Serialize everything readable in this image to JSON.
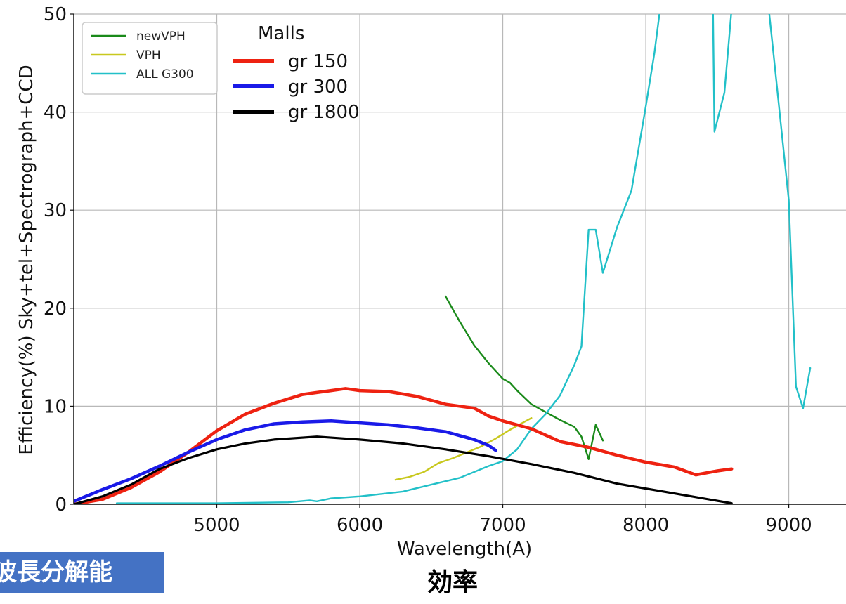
{
  "banner": {
    "label": "波長分解能"
  },
  "caption": {
    "label": "効率"
  },
  "colors": {
    "newVPH": "#1a8a1a",
    "VPH": "#c8c81e",
    "ALL G300": "#22c0c8",
    "gr 150": "#ee2211",
    "gr 300": "#1a1ae8",
    "gr 1800": "#000000"
  },
  "chart_data": {
    "type": "line",
    "xlabel": "Wavelength(A)",
    "ylabel": "Efficiency(%) Sky+tel+Spectrograph+CCD",
    "xlim": [
      4000,
      9400
    ],
    "ylim": [
      0,
      50
    ],
    "xticks": [
      5000,
      6000,
      7000,
      8000,
      9000
    ],
    "yticks": [
      0,
      10,
      20,
      30,
      40,
      50
    ],
    "grid": true,
    "legend_top_left": {
      "placement": "top-left",
      "entries": [
        "newVPH",
        "VPH",
        "ALL G300"
      ]
    },
    "legend_malls": {
      "title": "Malls",
      "placement": "top-left",
      "entries": [
        "gr 150",
        "gr 300",
        "gr 1800"
      ]
    },
    "series": [
      {
        "name": "newVPH",
        "width": "thin",
        "points": [
          [
            6600,
            21.2
          ],
          [
            6700,
            18.6
          ],
          [
            6800,
            16.2
          ],
          [
            6900,
            14.4
          ],
          [
            7000,
            12.8
          ],
          [
            7050,
            12.4
          ],
          [
            7100,
            11.6
          ],
          [
            7200,
            10.2
          ],
          [
            7300,
            9.4
          ],
          [
            7400,
            8.6
          ],
          [
            7500,
            7.9
          ],
          [
            7550,
            6.9
          ],
          [
            7600,
            4.6
          ],
          [
            7650,
            8.1
          ],
          [
            7700,
            6.5
          ]
        ]
      },
      {
        "name": "VPH",
        "width": "thin",
        "points": [
          [
            6250,
            2.5
          ],
          [
            6350,
            2.8
          ],
          [
            6450,
            3.3
          ],
          [
            6550,
            4.2
          ],
          [
            6650,
            4.7
          ],
          [
            6750,
            5.3
          ],
          [
            6850,
            5.9
          ],
          [
            6950,
            6.7
          ],
          [
            7050,
            7.6
          ],
          [
            7150,
            8.4
          ],
          [
            7200,
            8.8
          ]
        ]
      },
      {
        "name": "ALL G300",
        "width": "thin",
        "points": [
          [
            4300,
            0.1
          ],
          [
            5000,
            0.1
          ],
          [
            5500,
            0.2
          ],
          [
            5650,
            0.4
          ],
          [
            5700,
            0.3
          ],
          [
            5800,
            0.6
          ],
          [
            6000,
            0.8
          ],
          [
            6300,
            1.3
          ],
          [
            6500,
            2.0
          ],
          [
            6700,
            2.7
          ],
          [
            6900,
            3.9
          ],
          [
            7000,
            4.4
          ],
          [
            7100,
            5.6
          ],
          [
            7200,
            7.7
          ],
          [
            7300,
            9.2
          ],
          [
            7400,
            11.1
          ],
          [
            7500,
            14.2
          ],
          [
            7550,
            16.1
          ],
          [
            7600,
            28.0
          ],
          [
            7650,
            28.0
          ],
          [
            7700,
            23.6
          ],
          [
            7800,
            28.3
          ],
          [
            7900,
            32.0
          ],
          [
            8000,
            40.6
          ],
          [
            8060,
            46.0
          ],
          [
            8100,
            50.5
          ],
          [
            8470,
            50.5
          ],
          [
            8480,
            38.0
          ],
          [
            8550,
            42.0
          ],
          [
            8600,
            50.5
          ],
          [
            8860,
            50.5
          ],
          [
            8900,
            45.0
          ],
          [
            9000,
            31.0
          ],
          [
            9050,
            12.0
          ],
          [
            9100,
            9.8
          ],
          [
            9150,
            13.9
          ]
        ]
      },
      {
        "name": "gr 150",
        "width": "thick",
        "points": [
          [
            4000,
            0.0
          ],
          [
            4200,
            0.5
          ],
          [
            4400,
            1.7
          ],
          [
            4600,
            3.3
          ],
          [
            4800,
            5.3
          ],
          [
            5000,
            7.5
          ],
          [
            5200,
            9.2
          ],
          [
            5400,
            10.3
          ],
          [
            5600,
            11.2
          ],
          [
            5800,
            11.6
          ],
          [
            5900,
            11.8
          ],
          [
            6000,
            11.6
          ],
          [
            6200,
            11.5
          ],
          [
            6400,
            11.0
          ],
          [
            6600,
            10.2
          ],
          [
            6800,
            9.8
          ],
          [
            6900,
            9.0
          ],
          [
            7000,
            8.5
          ],
          [
            7200,
            7.7
          ],
          [
            7400,
            6.4
          ],
          [
            7600,
            5.8
          ],
          [
            7800,
            5.0
          ],
          [
            8000,
            4.3
          ],
          [
            8200,
            3.8
          ],
          [
            8350,
            3.0
          ],
          [
            8500,
            3.4
          ],
          [
            8600,
            3.6
          ]
        ]
      },
      {
        "name": "gr 300",
        "width": "thick",
        "points": [
          [
            4000,
            0.3
          ],
          [
            4200,
            1.5
          ],
          [
            4400,
            2.6
          ],
          [
            4600,
            3.9
          ],
          [
            4800,
            5.3
          ],
          [
            5000,
            6.6
          ],
          [
            5200,
            7.6
          ],
          [
            5400,
            8.2
          ],
          [
            5600,
            8.4
          ],
          [
            5800,
            8.5
          ],
          [
            6000,
            8.3
          ],
          [
            6200,
            8.1
          ],
          [
            6400,
            7.8
          ],
          [
            6600,
            7.4
          ],
          [
            6800,
            6.6
          ],
          [
            6900,
            6.0
          ],
          [
            6950,
            5.5
          ]
        ]
      },
      {
        "name": "gr 1800",
        "width": "thick",
        "points": [
          [
            4000,
            0.0
          ],
          [
            4200,
            0.8
          ],
          [
            4400,
            2.0
          ],
          [
            4600,
            3.6
          ],
          [
            4800,
            4.7
          ],
          [
            5000,
            5.6
          ],
          [
            5200,
            6.2
          ],
          [
            5400,
            6.6
          ],
          [
            5700,
            6.9
          ],
          [
            6000,
            6.6
          ],
          [
            6300,
            6.2
          ],
          [
            6600,
            5.6
          ],
          [
            6900,
            4.9
          ],
          [
            7200,
            4.1
          ],
          [
            7500,
            3.2
          ],
          [
            7800,
            2.1
          ],
          [
            8200,
            1.1
          ],
          [
            8600,
            0.1
          ]
        ]
      }
    ]
  }
}
